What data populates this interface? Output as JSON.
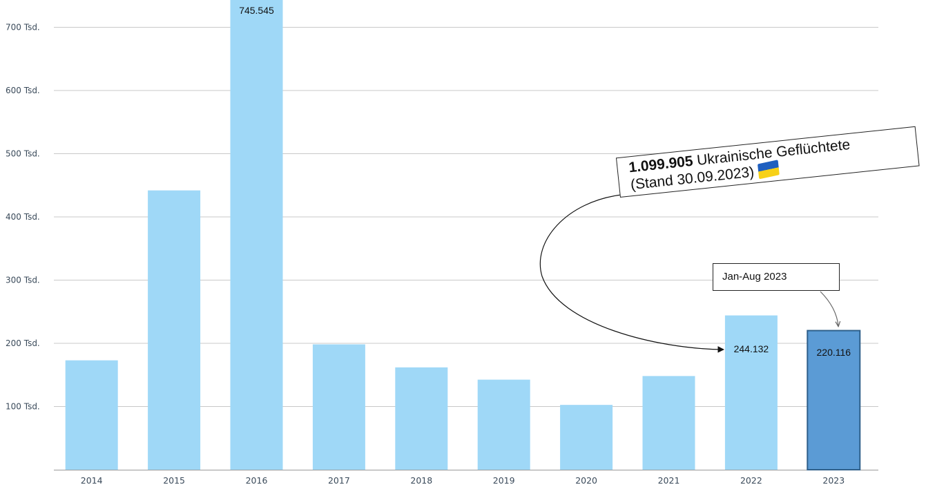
{
  "chart_data": {
    "type": "bar",
    "categories": [
      "2014",
      "2015",
      "2016",
      "2017",
      "2018",
      "2019",
      "2020",
      "2021",
      "2022",
      "2023"
    ],
    "values": [
      173072,
      441899,
      745545,
      198317,
      161931,
      142509,
      102581,
      148233,
      244132,
      220116
    ],
    "y_ticks": [
      "100 Tsd.",
      "200 Tsd.",
      "300 Tsd.",
      "400 Tsd.",
      "500 Tsd.",
      "600 Tsd.",
      "700 Tsd."
    ],
    "ylim": [
      0,
      730000
    ],
    "grid": true,
    "colors": {
      "bar": "#9fd8f7",
      "bar_highlight": "#5b9bd5",
      "bar_highlight_border": "#2e5f8a",
      "grid": "#c8c8c8"
    },
    "highlight_index": 9,
    "data_labels": [
      {
        "index": 2,
        "text": "745.545"
      },
      {
        "index": 8,
        "text": "244.132"
      },
      {
        "index": 9,
        "text": "220.116"
      }
    ]
  },
  "annotations": {
    "callout_bold": "1.099.905",
    "callout_text": " Ukrainische Geflüchtete",
    "callout_line2": "(Stand 30.09.2023)",
    "flag_icon": "ukraine-flag-icon",
    "note": "Jan-Aug 2023"
  }
}
